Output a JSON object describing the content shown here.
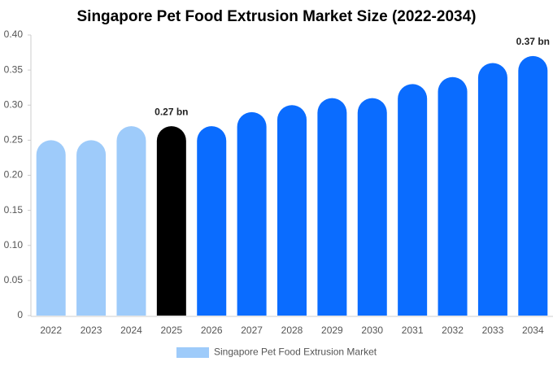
{
  "chart_data": {
    "type": "bar",
    "title": "Singapore Pet Food Extrusion Market Size (2022-2034)",
    "categories": [
      "2022",
      "2023",
      "2024",
      "2025",
      "2026",
      "2027",
      "2028",
      "2029",
      "2030",
      "2031",
      "2032",
      "2033",
      "2034"
    ],
    "series": [
      {
        "name": "Singapore Pet Food Extrusion Market",
        "color": "#9ecbfa",
        "colors": [
          "#9ecbfa",
          "#9ecbfa",
          "#9ecbfa",
          "#000000",
          "#0a6cff",
          "#0a6cff",
          "#0a6cff",
          "#0a6cff",
          "#0a6cff",
          "#0a6cff",
          "#0a6cff",
          "#0a6cff",
          "#0a6cff"
        ],
        "values": [
          0.25,
          0.25,
          0.27,
          0.27,
          0.27,
          0.29,
          0.3,
          0.31,
          0.31,
          0.33,
          0.34,
          0.36,
          0.37
        ],
        "value_labels": [
          null,
          null,
          null,
          "0.27 bn",
          null,
          null,
          null,
          null,
          null,
          null,
          null,
          null,
          "0.37 bn"
        ]
      }
    ],
    "ylim": [
      0,
      0.4
    ],
    "yticks": [
      0,
      0.05,
      {
        "value": 0.1,
        "label": "0.10"
      },
      0.15,
      {
        "value": 0.2,
        "label": "0.20"
      },
      0.25,
      {
        "value": 0.3,
        "label": "0.30"
      },
      0.35,
      {
        "value": 0.4,
        "label": "0.40"
      }
    ],
    "grid": false,
    "legend": "bottom"
  }
}
